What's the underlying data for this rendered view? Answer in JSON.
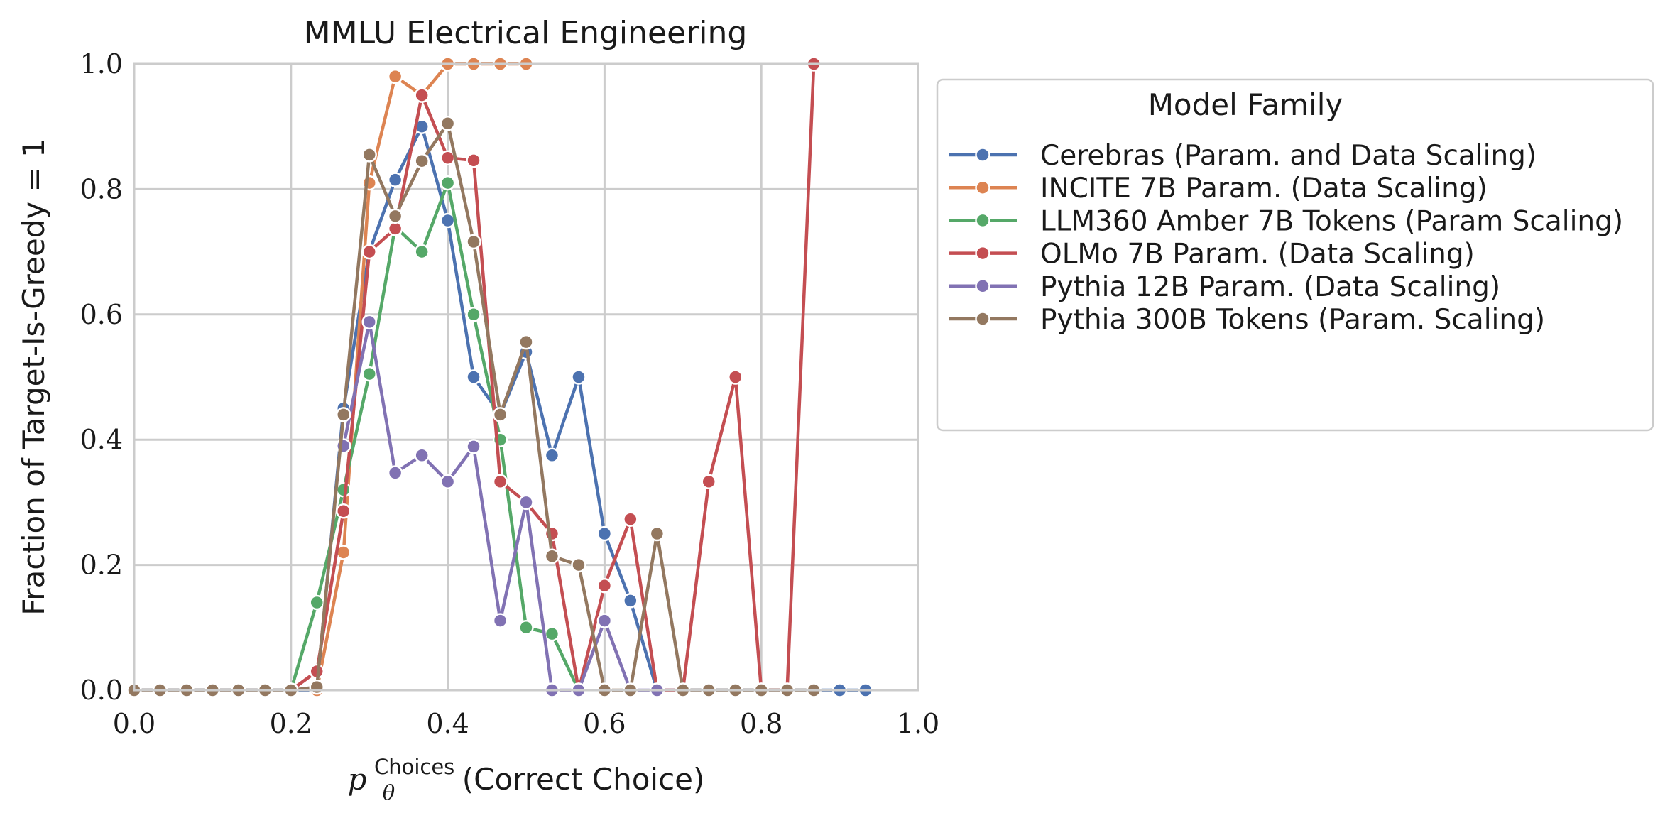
{
  "chart_data": {
    "type": "line",
    "title": "MMLU Electrical Engineering",
    "xlabel_math": "p",
    "xlabel_sub": "θ",
    "xlabel_sup": "Choices",
    "xlabel_rest": "(Correct Choice)",
    "ylabel": "Fraction of Target-Is-Greedy = 1",
    "xlim": [
      0,
      1
    ],
    "ylim": [
      0,
      1
    ],
    "xticks": [
      "0.0",
      "0.2",
      "0.4",
      "0.6",
      "0.8",
      "1.0"
    ],
    "yticks": [
      "0.0",
      "0.2",
      "0.4",
      "0.6",
      "0.8",
      "1.0"
    ],
    "grid": true,
    "legend_title": "Model Family",
    "legend_position": "outside right",
    "series": [
      {
        "name": "Cerebras (Param. and Data Scaling)",
        "color": "#4c72b0",
        "x": [
          0.0,
          0.033,
          0.067,
          0.1,
          0.133,
          0.167,
          0.2,
          0.233,
          0.267,
          0.3,
          0.333,
          0.367,
          0.4,
          0.433,
          0.467,
          0.5,
          0.533,
          0.567,
          0.6,
          0.633,
          0.667,
          0.7,
          0.733,
          0.767,
          0.8,
          0.833,
          0.867,
          0.9,
          0.933
        ],
        "y": [
          0.0,
          0.0,
          0.0,
          0.0,
          0.0,
          0.0,
          0.0,
          0.0,
          0.45,
          0.7,
          0.815,
          0.9,
          0.75,
          0.5,
          0.44,
          0.54,
          0.375,
          0.5,
          0.25,
          0.143,
          0.0,
          0.0,
          0.0,
          0.0,
          0.0,
          0.0,
          0.0,
          0.0,
          0.0
        ]
      },
      {
        "name": "INCITE 7B Param. (Data Scaling)",
        "color": "#dd8452",
        "x": [
          0.233,
          0.267,
          0.3,
          0.333,
          0.367,
          0.4,
          0.433,
          0.467,
          0.5
        ],
        "y": [
          0.0,
          0.22,
          0.81,
          0.98,
          0.95,
          1.0,
          1.0,
          1.0,
          1.0
        ]
      },
      {
        "name": "LLM360 Amber 7B Tokens (Param Scaling)",
        "color": "#55a868",
        "x": [
          0.2,
          0.233,
          0.267,
          0.3,
          0.333,
          0.367,
          0.4,
          0.433,
          0.467,
          0.5,
          0.533,
          0.567
        ],
        "y": [
          0.0,
          0.14,
          0.32,
          0.505,
          0.74,
          0.7,
          0.81,
          0.6,
          0.4,
          0.1,
          0.09,
          0.0
        ]
      },
      {
        "name": "OLMo 7B Param. (Data Scaling)",
        "color": "#c44e52",
        "x": [
          0.2,
          0.233,
          0.267,
          0.3,
          0.333,
          0.367,
          0.4,
          0.433,
          0.467,
          0.5,
          0.533,
          0.567,
          0.6,
          0.633,
          0.667,
          0.7,
          0.733,
          0.767,
          0.8,
          0.833,
          0.867
        ],
        "y": [
          0.0,
          0.03,
          0.286,
          0.7,
          0.737,
          0.95,
          0.85,
          0.846,
          0.333,
          0.3,
          0.25,
          0.0,
          0.167,
          0.273,
          0.0,
          0.0,
          0.333,
          0.5,
          0.0,
          0.0,
          1.0
        ]
      },
      {
        "name": "Pythia 12B Param. (Data Scaling)",
        "color": "#8172b3",
        "x": [
          0.267,
          0.3,
          0.333,
          0.367,
          0.4,
          0.433,
          0.467,
          0.5,
          0.533,
          0.567,
          0.6,
          0.633,
          0.667
        ],
        "y": [
          0.39,
          0.588,
          0.347,
          0.375,
          0.333,
          0.389,
          0.111,
          0.3,
          0.0,
          0.0,
          0.111,
          0.0,
          0.0
        ]
      },
      {
        "name": "Pythia 300B Tokens (Param. Scaling)",
        "color": "#937860",
        "x": [
          0.0,
          0.033,
          0.067,
          0.1,
          0.133,
          0.167,
          0.2,
          0.233,
          0.267,
          0.3,
          0.333,
          0.367,
          0.4,
          0.433,
          0.467,
          0.5,
          0.533,
          0.567,
          0.6,
          0.633,
          0.667,
          0.7,
          0.733,
          0.767,
          0.8,
          0.833,
          0.867
        ],
        "y": [
          0.0,
          0.0,
          0.0,
          0.0,
          0.0,
          0.0,
          0.0,
          0.005,
          0.44,
          0.855,
          0.757,
          0.845,
          0.905,
          0.716,
          0.44,
          0.556,
          0.214,
          0.2,
          0.0,
          0.0,
          0.25,
          0.0,
          0.0,
          0.0,
          0.0,
          0.0,
          0.0
        ]
      }
    ]
  }
}
